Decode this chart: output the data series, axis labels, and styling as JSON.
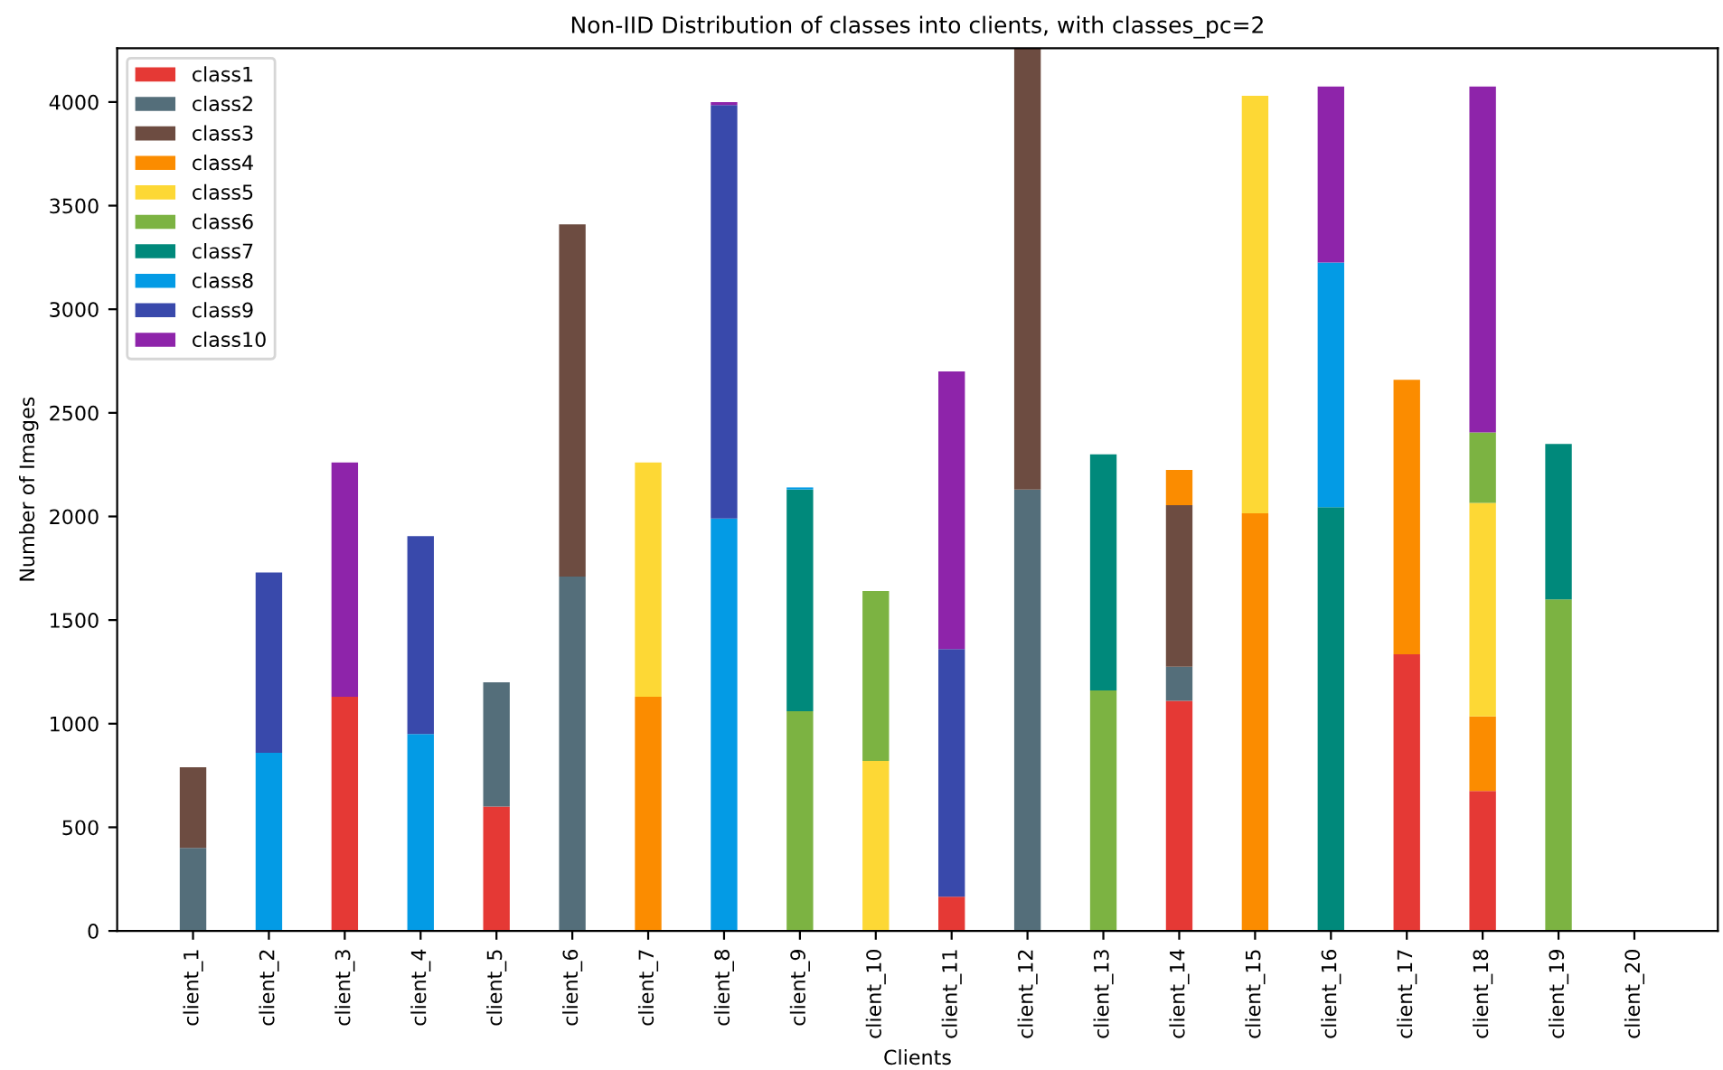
{
  "chart_data": {
    "type": "bar",
    "stacked": true,
    "title": "Non-IID Distribution of classes into clients, with classes_pc=2",
    "xlabel": "Clients",
    "ylabel": "Number of Images",
    "categories": [
      "client_1",
      "client_2",
      "client_3",
      "client_4",
      "client_5",
      "client_6",
      "client_7",
      "client_8",
      "client_9",
      "client_10",
      "client_11",
      "client_12",
      "client_13",
      "client_14",
      "client_15",
      "client_16",
      "client_17",
      "client_18",
      "client_19",
      "client_20"
    ],
    "series": [
      {
        "name": "class1",
        "color": "#e53935",
        "values": [
          0,
          0,
          1130,
          0,
          600,
          0,
          0,
          0,
          0,
          0,
          165,
          0,
          0,
          1110,
          0,
          0,
          1335,
          675,
          0,
          0
        ]
      },
      {
        "name": "class2",
        "color": "#546e7a",
        "values": [
          400,
          0,
          0,
          0,
          600,
          1710,
          0,
          0,
          0,
          0,
          0,
          2130,
          0,
          165,
          0,
          0,
          0,
          0,
          0,
          0
        ]
      },
      {
        "name": "class3",
        "color": "#6d4c41",
        "values": [
          390,
          0,
          0,
          0,
          0,
          1700,
          0,
          0,
          0,
          0,
          0,
          2130,
          0,
          780,
          0,
          0,
          0,
          0,
          0,
          0
        ]
      },
      {
        "name": "class4",
        "color": "#fb8c00",
        "values": [
          0,
          0,
          0,
          0,
          0,
          0,
          1130,
          0,
          0,
          0,
          0,
          0,
          0,
          170,
          2015,
          0,
          1325,
          360,
          0,
          0
        ]
      },
      {
        "name": "class5",
        "color": "#fdd835",
        "values": [
          0,
          0,
          0,
          0,
          0,
          0,
          1130,
          0,
          0,
          820,
          0,
          0,
          0,
          0,
          2015,
          0,
          0,
          1030,
          0,
          0
        ]
      },
      {
        "name": "class6",
        "color": "#7cb342",
        "values": [
          0,
          0,
          0,
          0,
          0,
          0,
          0,
          0,
          1060,
          820,
          0,
          0,
          1160,
          0,
          0,
          0,
          0,
          340,
          1600,
          0
        ]
      },
      {
        "name": "class7",
        "color": "#00897b",
        "values": [
          0,
          0,
          0,
          0,
          0,
          0,
          0,
          0,
          1070,
          0,
          0,
          0,
          1140,
          0,
          0,
          2045,
          0,
          0,
          750,
          0
        ]
      },
      {
        "name": "class8",
        "color": "#039be5",
        "values": [
          0,
          860,
          0,
          950,
          0,
          0,
          0,
          1990,
          10,
          0,
          0,
          0,
          0,
          0,
          0,
          1180,
          0,
          0,
          0,
          0
        ]
      },
      {
        "name": "class9",
        "color": "#3949ab",
        "values": [
          0,
          870,
          0,
          955,
          0,
          0,
          0,
          1995,
          0,
          0,
          1195,
          0,
          0,
          0,
          0,
          0,
          0,
          0,
          0,
          0
        ]
      },
      {
        "name": "class10",
        "color": "#8e24aa",
        "values": [
          0,
          0,
          1130,
          0,
          0,
          0,
          0,
          15,
          0,
          0,
          1340,
          0,
          0,
          0,
          0,
          850,
          0,
          1670,
          0,
          0
        ]
      }
    ],
    "ylim": [
      0,
      4260
    ],
    "yticks": [
      0,
      500,
      1000,
      1500,
      2000,
      2500,
      3000,
      3500,
      4000
    ],
    "grid": false,
    "legend": "top left"
  }
}
